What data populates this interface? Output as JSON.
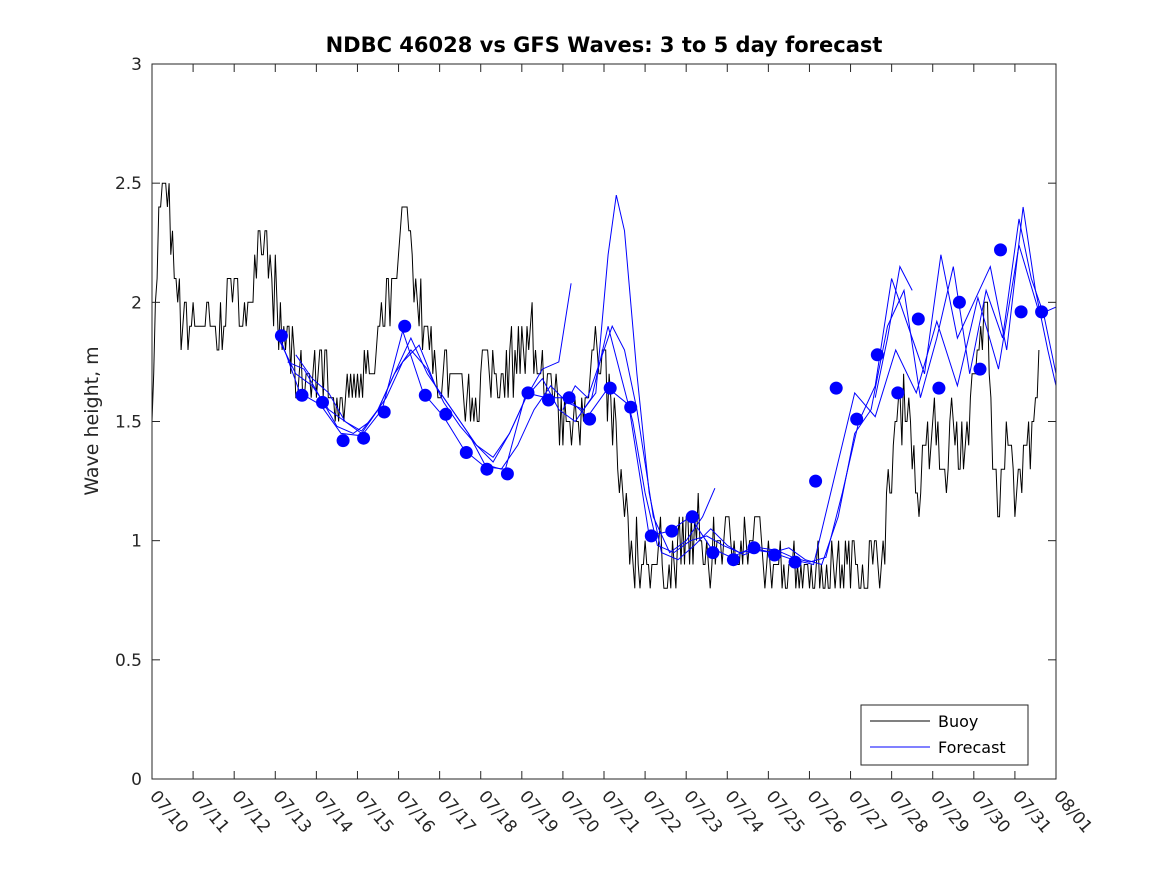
{
  "chart_data": {
    "type": "line",
    "title": "NDBC 46028 vs GFS Waves: 3 to 5 day forecast",
    "xlabel": "",
    "ylabel": "Wave height, m",
    "xlim": [
      0,
      22
    ],
    "ylim": [
      0,
      3
    ],
    "x_tick_labels": [
      "07/10",
      "07/11",
      "07/12",
      "07/13",
      "07/14",
      "07/15",
      "07/16",
      "07/17",
      "07/18",
      "07/19",
      "07/20",
      "07/21",
      "07/22",
      "07/23",
      "07/24",
      "07/25",
      "07/26",
      "07/27",
      "07/28",
      "07/29",
      "07/30",
      "07/31",
      "08/01"
    ],
    "y_ticks": [
      0,
      0.5,
      1,
      1.5,
      2,
      2.5,
      3
    ],
    "y_tick_labels": [
      "0",
      "0.5",
      "1",
      "1.5",
      "2",
      "2.5",
      "3"
    ],
    "grid": false,
    "legend": {
      "placement": "bottom-right",
      "entries": [
        "Buoy",
        "Forecast"
      ]
    },
    "colors": {
      "buoy": "#000000",
      "forecast": "#0000ff",
      "points": "#0000ff"
    },
    "buoy_control_points": {
      "x": [
        0.0,
        0.1,
        0.2,
        0.3,
        0.4,
        0.5,
        0.6,
        0.8,
        1.0,
        1.3,
        1.6,
        1.9,
        2.1,
        2.3,
        2.6,
        2.8,
        3.0,
        3.2,
        3.4,
        3.7,
        4.0,
        4.3,
        4.6,
        4.9,
        5.1,
        5.3,
        5.6,
        5.8,
        6.0,
        6.1,
        6.25,
        6.4,
        6.6,
        6.8,
        7.0,
        7.2,
        7.5,
        7.8,
        8.0,
        8.2,
        8.5,
        8.8,
        9.1,
        9.3,
        9.6,
        9.9,
        10.1,
        10.3,
        10.5,
        10.7,
        11.0,
        11.2,
        11.4,
        11.6,
        11.8,
        12.0,
        12.2,
        12.4,
        12.6,
        12.8,
        13.0,
        13.3,
        13.6,
        13.9,
        14.2,
        14.5,
        14.8,
        15.0,
        15.3,
        15.6,
        15.9,
        16.2,
        16.5,
        16.8,
        17.0,
        17.2,
        17.5,
        17.7,
        17.9,
        18.1,
        18.4,
        18.6,
        18.9,
        19.1,
        19.3,
        19.5,
        19.7,
        20.0,
        20.3,
        20.5,
        20.7,
        20.9,
        21.0,
        21.1,
        21.2,
        21.3,
        21.4,
        21.5,
        21.55,
        21.6
      ],
      "y": [
        1.6,
        2.0,
        2.4,
        2.5,
        2.4,
        2.2,
        2.0,
        1.9,
        1.85,
        1.95,
        1.8,
        2.1,
        2.0,
        1.9,
        2.3,
        2.2,
        1.95,
        1.85,
        1.75,
        1.7,
        1.65,
        1.7,
        1.6,
        1.7,
        1.7,
        1.65,
        1.9,
        2.0,
        2.1,
        2.4,
        2.3,
        2.1,
        1.9,
        1.75,
        1.7,
        1.65,
        1.6,
        1.6,
        1.65,
        1.7,
        1.65,
        1.8,
        1.75,
        1.8,
        1.65,
        1.55,
        1.5,
        1.45,
        1.6,
        1.8,
        1.7,
        1.5,
        1.3,
        1.05,
        0.9,
        0.88,
        0.85,
        0.9,
        0.95,
        0.95,
        1.0,
        0.95,
        0.95,
        1.05,
        0.95,
        1.0,
        0.95,
        0.92,
        0.9,
        0.95,
        0.9,
        0.9,
        0.92,
        0.9,
        0.9,
        0.88,
        0.92,
        0.92,
        1.1,
        1.5,
        1.6,
        1.2,
        1.4,
        1.5,
        1.25,
        1.55,
        1.35,
        1.6,
        2.0,
        1.2,
        1.25,
        1.6,
        1.2,
        1.15,
        1.25,
        1.45,
        1.3,
        1.6,
        1.55,
        1.75
      ]
    },
    "forecast_series": [
      {
        "x": [
          3.1,
          3.6,
          4.1,
          4.6,
          5.1,
          5.6,
          6.1,
          6.6,
          7.1,
          7.6,
          8.1,
          8.6,
          9.1,
          9.6,
          10.1,
          10.6,
          11.1,
          11.6,
          12.1,
          12.6,
          13.1,
          13.6,
          14.1,
          14.6,
          15.1,
          15.6,
          16.1,
          16.6,
          17.1,
          17.6,
          18.1,
          18.6,
          19.1,
          19.6,
          20.1,
          20.6,
          21.1,
          21.6,
          22.0
        ],
        "y": [
          1.86,
          1.62,
          1.57,
          1.45,
          1.44,
          1.55,
          1.88,
          1.62,
          1.52,
          1.38,
          1.31,
          1.3,
          1.62,
          1.6,
          1.6,
          1.52,
          1.64,
          1.57,
          1.02,
          1.04,
          1.1,
          0.97,
          0.93,
          0.97,
          0.95,
          0.92,
          0.9,
          1.26,
          1.62,
          1.52,
          1.8,
          1.62,
          1.92,
          1.65,
          2.02,
          1.72,
          2.24,
          1.95,
          1.98
        ]
      },
      {
        "x": [
          3.1,
          3.5,
          3.9,
          4.3,
          4.7,
          5.1,
          5.5,
          5.9,
          6.3,
          6.7,
          7.1,
          7.5,
          7.9,
          8.3,
          8.7,
          9.1,
          9.5,
          9.9,
          10.3,
          10.7,
          11.1,
          11.4,
          11.7,
          12.0,
          12.3,
          12.7,
          13.1,
          13.5,
          13.9,
          14.3,
          14.7,
          15.1,
          15.5,
          15.9,
          16.3,
          16.7,
          17.1,
          17.5,
          17.9,
          18.3,
          18.7,
          19.1,
          19.5,
          19.9,
          20.3,
          20.7,
          21.1,
          21.4,
          21.7,
          22.0
        ],
        "y": [
          1.84,
          1.7,
          1.65,
          1.55,
          1.5,
          1.45,
          1.55,
          1.7,
          1.85,
          1.7,
          1.6,
          1.5,
          1.4,
          1.35,
          1.45,
          1.6,
          1.68,
          1.55,
          1.5,
          1.6,
          1.9,
          1.7,
          1.5,
          1.2,
          0.98,
          0.95,
          1.0,
          1.02,
          0.98,
          0.95,
          0.96,
          0.95,
          0.97,
          0.92,
          0.9,
          1.1,
          1.45,
          1.55,
          1.9,
          2.05,
          1.6,
          1.85,
          2.15,
          1.7,
          2.05,
          1.85,
          2.35,
          2.1,
          1.95,
          1.7
        ]
      },
      {
        "x": [
          3.3,
          3.7,
          4.1,
          4.5,
          4.9,
          5.3,
          5.7,
          6.1,
          6.5,
          6.9,
          7.3,
          7.7,
          8.1,
          8.5,
          8.9,
          9.3,
          9.7,
          10.1,
          10.5,
          10.8,
          11.1,
          11.3,
          11.5,
          11.8,
          12.1,
          12.4,
          12.8,
          13.2,
          13.6,
          14.0,
          14.4,
          14.8,
          15.2,
          15.6,
          16.0,
          16.4,
          16.8,
          17.2,
          17.6,
          18.0,
          18.4,
          18.8,
          19.2,
          19.6,
          20.0,
          20.4,
          20.8,
          21.2,
          21.5,
          21.8,
          22.0
        ],
        "y": [
          1.75,
          1.72,
          1.6,
          1.48,
          1.45,
          1.5,
          1.6,
          1.75,
          1.82,
          1.65,
          1.55,
          1.45,
          1.32,
          1.3,
          1.4,
          1.55,
          1.65,
          1.58,
          1.55,
          1.62,
          2.2,
          2.45,
          2.3,
          1.7,
          1.2,
          0.95,
          0.92,
          0.98,
          1.05,
          0.98,
          0.94,
          0.97,
          0.96,
          0.93,
          0.91,
          0.93,
          1.2,
          1.5,
          1.65,
          2.1,
          1.9,
          1.7,
          2.2,
          1.85,
          2.0,
          2.15,
          1.8,
          2.4,
          2.05,
          1.8,
          1.65
        ]
      },
      {
        "x": [
          3.5,
          3.9,
          4.3,
          4.7,
          5.1,
          5.5,
          5.9,
          6.3,
          6.7,
          7.1,
          7.5,
          7.9,
          8.3,
          8.7,
          9.1,
          9.5,
          9.9,
          10.2
        ],
        "y": [
          1.78,
          1.68,
          1.62,
          1.5,
          1.46,
          1.55,
          1.7,
          1.8,
          1.72,
          1.58,
          1.48,
          1.4,
          1.33,
          1.45,
          1.6,
          1.72,
          1.75,
          2.08
        ]
      },
      {
        "x": [
          10.0,
          10.3,
          10.6,
          10.9,
          11.2,
          11.5,
          11.8,
          12.2,
          12.6,
          13.0,
          13.4,
          13.7
        ],
        "y": [
          1.55,
          1.65,
          1.6,
          1.75,
          1.9,
          1.8,
          1.55,
          1.1,
          0.95,
          1.0,
          1.1,
          1.22
        ]
      },
      {
        "x": [
          17.6,
          17.9,
          18.2,
          18.5
        ],
        "y": [
          1.6,
          1.85,
          2.15,
          2.05
        ]
      }
    ],
    "forecast_points": {
      "x": [
        3.15,
        3.65,
        4.15,
        4.65,
        5.15,
        5.65,
        6.15,
        6.65,
        7.15,
        7.65,
        8.15,
        8.65,
        9.15,
        9.65,
        10.15,
        10.65,
        11.15,
        11.65,
        12.15,
        12.65,
        13.15,
        13.65,
        14.15,
        14.65,
        15.15,
        15.65,
        16.15,
        16.65,
        17.15,
        17.65,
        18.15,
        18.65,
        19.15,
        19.65,
        20.15,
        20.65,
        21.15,
        21.65
      ],
      "y": [
        1.86,
        1.61,
        1.58,
        1.42,
        1.43,
        1.54,
        1.9,
        1.61,
        1.53,
        1.37,
        1.3,
        1.28,
        1.62,
        1.59,
        1.6,
        1.51,
        1.64,
        1.56,
        1.02,
        1.04,
        1.1,
        0.95,
        0.92,
        0.97,
        0.94,
        0.91,
        1.25,
        1.64,
        1.51,
        1.78,
        1.62,
        1.93,
        1.64,
        2.0,
        1.72,
        2.22,
        1.96,
        1.96
      ]
    }
  }
}
